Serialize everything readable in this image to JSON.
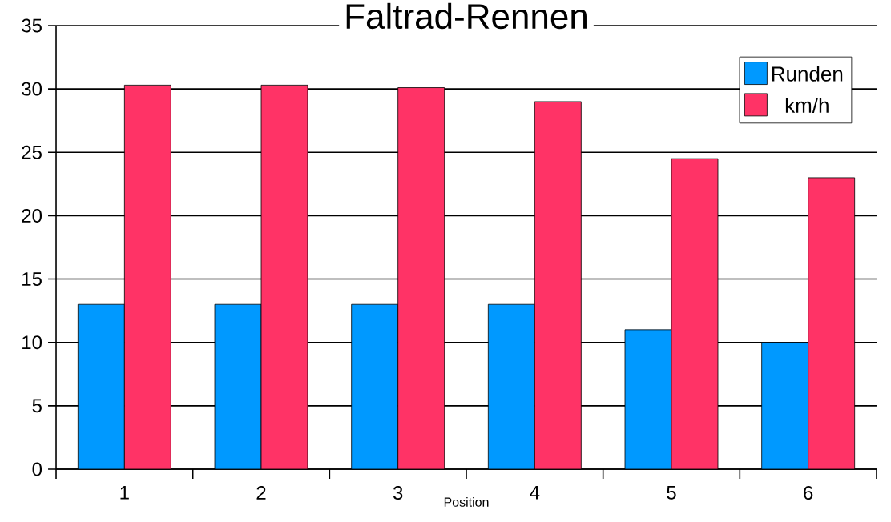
{
  "chart_data": {
    "type": "bar",
    "title": "Faltrad-Rennen",
    "xlabel": "Position",
    "categories": [
      "1",
      "2",
      "3",
      "4",
      "5",
      "6"
    ],
    "series": [
      {
        "name": "Runden",
        "color": "#0099ff",
        "values": [
          13,
          13,
          13,
          13,
          11,
          10
        ]
      },
      {
        "name": "km/h",
        "color": "#ff3366",
        "values": [
          30.3,
          30.3,
          30.1,
          29,
          24.5,
          23
        ]
      }
    ],
    "ylim": [
      0,
      35
    ],
    "yticks": [
      0,
      5,
      10,
      15,
      20,
      25,
      30,
      35
    ],
    "grid": "y",
    "legend": "top right"
  }
}
